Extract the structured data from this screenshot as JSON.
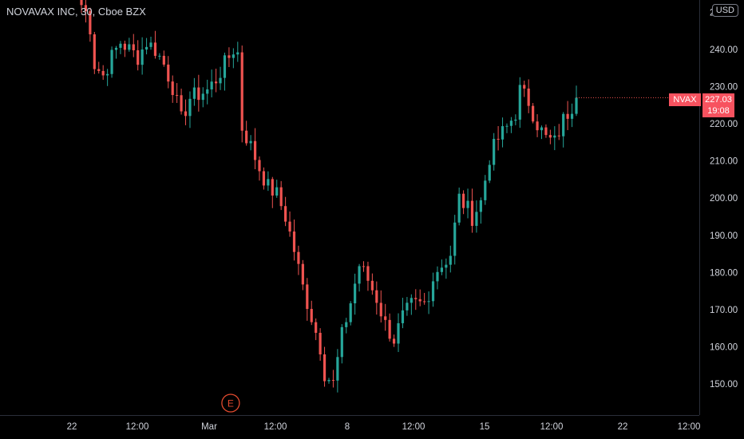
{
  "legend": {
    "title": "NOVAVAX INC, 30, Cboe BZX"
  },
  "currency_button": "USD",
  "symbol_label": "NVAX",
  "last_price": "227.03",
  "countdown": "19:08",
  "earnings_marker": "E",
  "colors": {
    "up": "#26a69a",
    "down": "#ef5350",
    "background": "#000000",
    "axis_text": "#d1d4dc",
    "last_price_bg": "#f7525f"
  },
  "chart_data": {
    "type": "candlestick",
    "title": "NOVAVAX INC, 30, Cboe BZX",
    "currency": "USD",
    "ylim": [
      143,
      251
    ],
    "y_ticks": [
      150,
      160,
      170,
      180,
      190,
      200,
      210,
      220,
      230,
      240
    ],
    "y_tick_labels": [
      "150.00",
      "160.00",
      "170.00",
      "180.00",
      "190.00",
      "200.00",
      "210.00",
      "220.00",
      "230.00",
      "240.00"
    ],
    "x_tick_labels": [
      "22",
      "12:00",
      "Mar",
      "12:00",
      "8",
      "12:00",
      "15",
      "12:00",
      "22",
      "12:00"
    ],
    "grid": false,
    "last_price": 227.03,
    "anchors": [
      [
        0,
        252
      ],
      [
        1,
        250
      ],
      [
        2,
        246
      ],
      [
        3,
        236
      ],
      [
        5,
        233
      ],
      [
        7,
        238
      ],
      [
        9,
        242
      ],
      [
        11,
        240
      ],
      [
        13,
        238
      ],
      [
        15,
        242
      ],
      [
        17,
        240
      ],
      [
        19,
        236
      ],
      [
        21,
        230
      ],
      [
        23,
        221
      ],
      [
        25,
        227
      ],
      [
        27,
        228
      ],
      [
        29,
        229
      ],
      [
        31,
        232
      ],
      [
        33,
        236
      ],
      [
        35,
        240
      ],
      [
        36,
        239
      ],
      [
        37,
        219
      ],
      [
        39,
        214
      ],
      [
        41,
        208
      ],
      [
        43,
        203
      ],
      [
        45,
        201
      ],
      [
        47,
        195
      ],
      [
        49,
        186
      ],
      [
        51,
        176
      ],
      [
        53,
        168
      ],
      [
        55,
        160
      ],
      [
        56,
        153
      ],
      [
        58,
        150
      ],
      [
        60,
        163
      ],
      [
        62,
        172
      ],
      [
        64,
        182
      ],
      [
        66,
        178
      ],
      [
        68,
        173
      ],
      [
        70,
        166
      ],
      [
        72,
        162
      ],
      [
        74,
        168
      ],
      [
        76,
        171
      ],
      [
        78,
        171
      ],
      [
        80,
        172
      ],
      [
        81,
        180
      ],
      [
        83,
        182
      ],
      [
        85,
        185
      ],
      [
        87,
        200
      ],
      [
        89,
        197
      ],
      [
        90,
        195
      ],
      [
        92,
        199
      ],
      [
        94,
        211
      ],
      [
        96,
        216
      ],
      [
        98,
        219
      ],
      [
        100,
        223
      ],
      [
        101,
        229
      ],
      [
        103,
        226
      ],
      [
        105,
        220
      ],
      [
        107,
        216
      ],
      [
        109,
        215
      ],
      [
        111,
        221
      ],
      [
        113,
        225
      ],
      [
        114,
        227
      ]
    ],
    "earnings_bar_index": 34
  }
}
